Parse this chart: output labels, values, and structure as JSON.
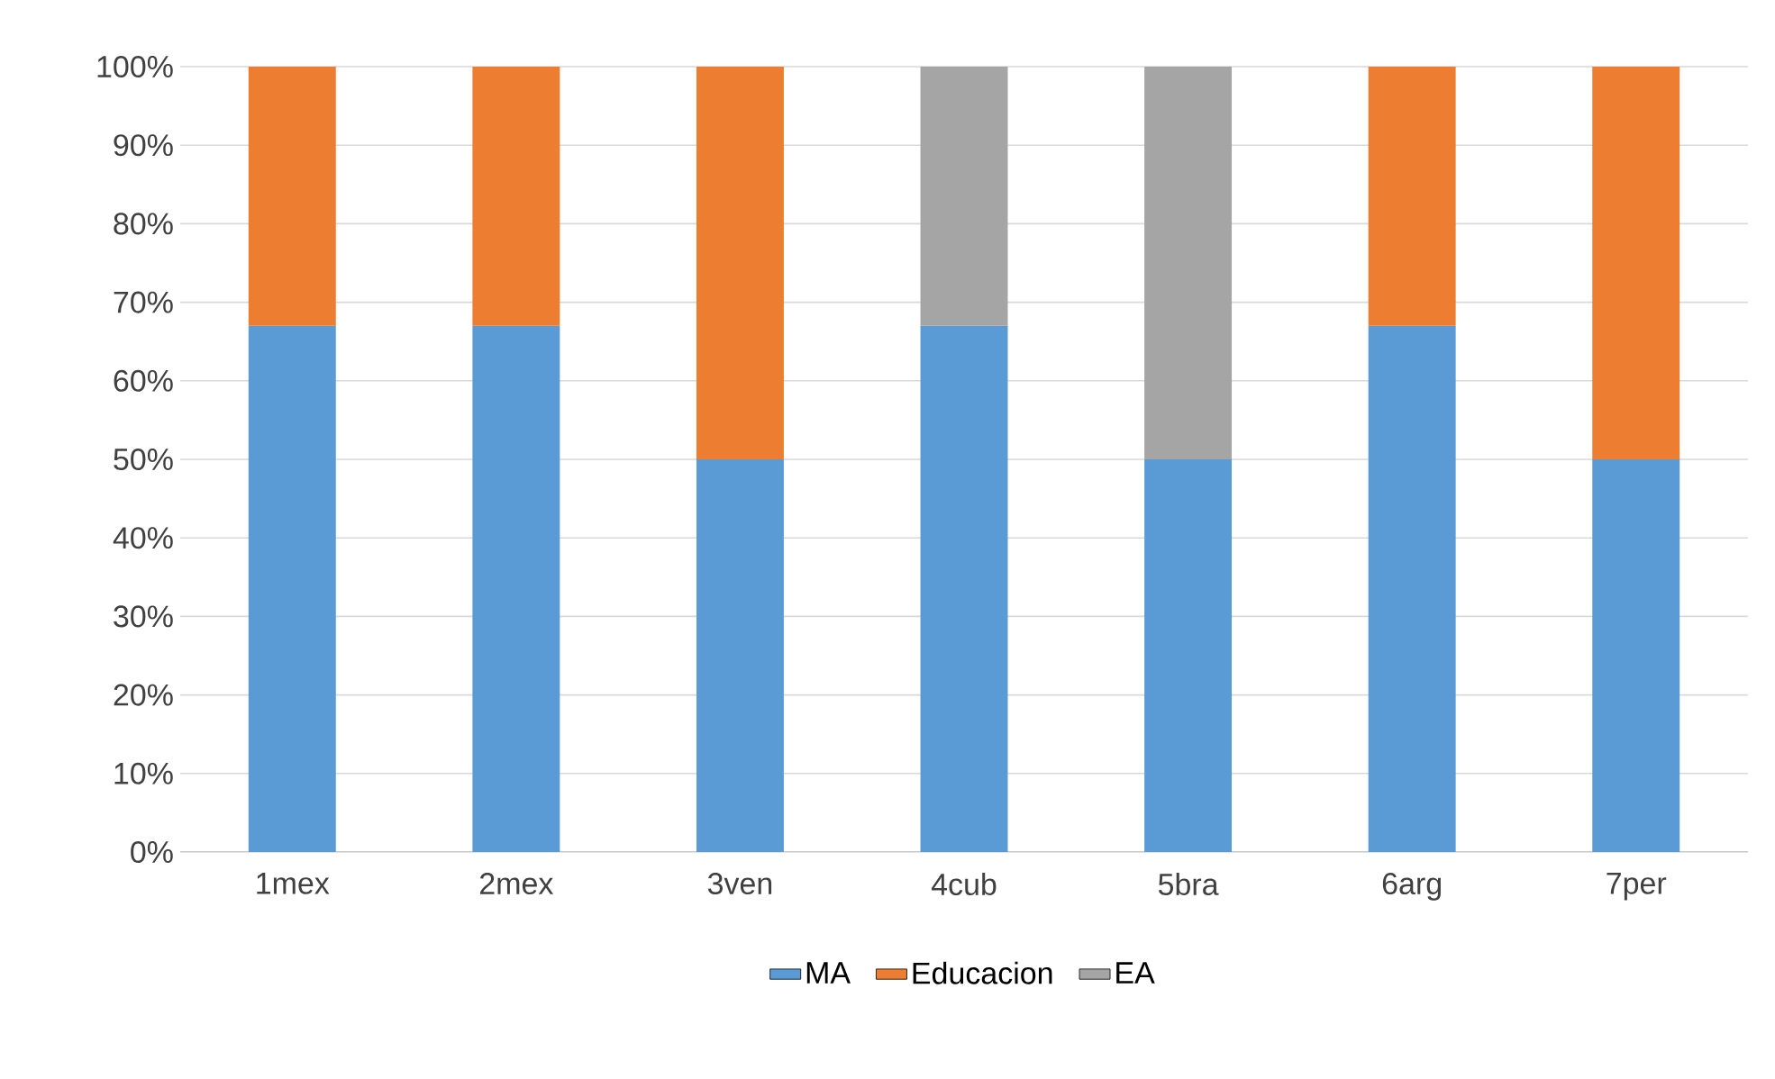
{
  "chart_data": {
    "type": "bar",
    "stacked": true,
    "grid": "y",
    "legend": "bottom",
    "categories": [
      "1mex",
      "2mex",
      "3ven",
      "4cub",
      "5bra",
      "6arg",
      "7per"
    ],
    "ylim": [
      0,
      100
    ],
    "yticks": [
      {
        "value": 0,
        "label": "0%"
      },
      {
        "value": 10,
        "label": "10%"
      },
      {
        "value": 20,
        "label": "20%"
      },
      {
        "value": 30,
        "label": "30%"
      },
      {
        "value": 40,
        "label": "40%"
      },
      {
        "value": 50,
        "label": "50%"
      },
      {
        "value": 60,
        "label": "60%"
      },
      {
        "value": 70,
        "label": "70%"
      },
      {
        "value": 80,
        "label": "80%"
      },
      {
        "value": 90,
        "label": "90%"
      },
      {
        "value": 100,
        "label": "100%"
      }
    ],
    "series": [
      {
        "name": "MA",
        "color": "#5b9bd5",
        "values": [
          67,
          67,
          50,
          67,
          50,
          67,
          50
        ]
      },
      {
        "name": "Educacion",
        "color": "#ed7d31",
        "values": [
          33,
          33,
          50,
          null,
          null,
          33,
          50
        ]
      },
      {
        "name": "EA",
        "color": "#a5a5a5",
        "values": [
          null,
          null,
          null,
          33,
          50,
          null,
          null
        ]
      }
    ]
  }
}
